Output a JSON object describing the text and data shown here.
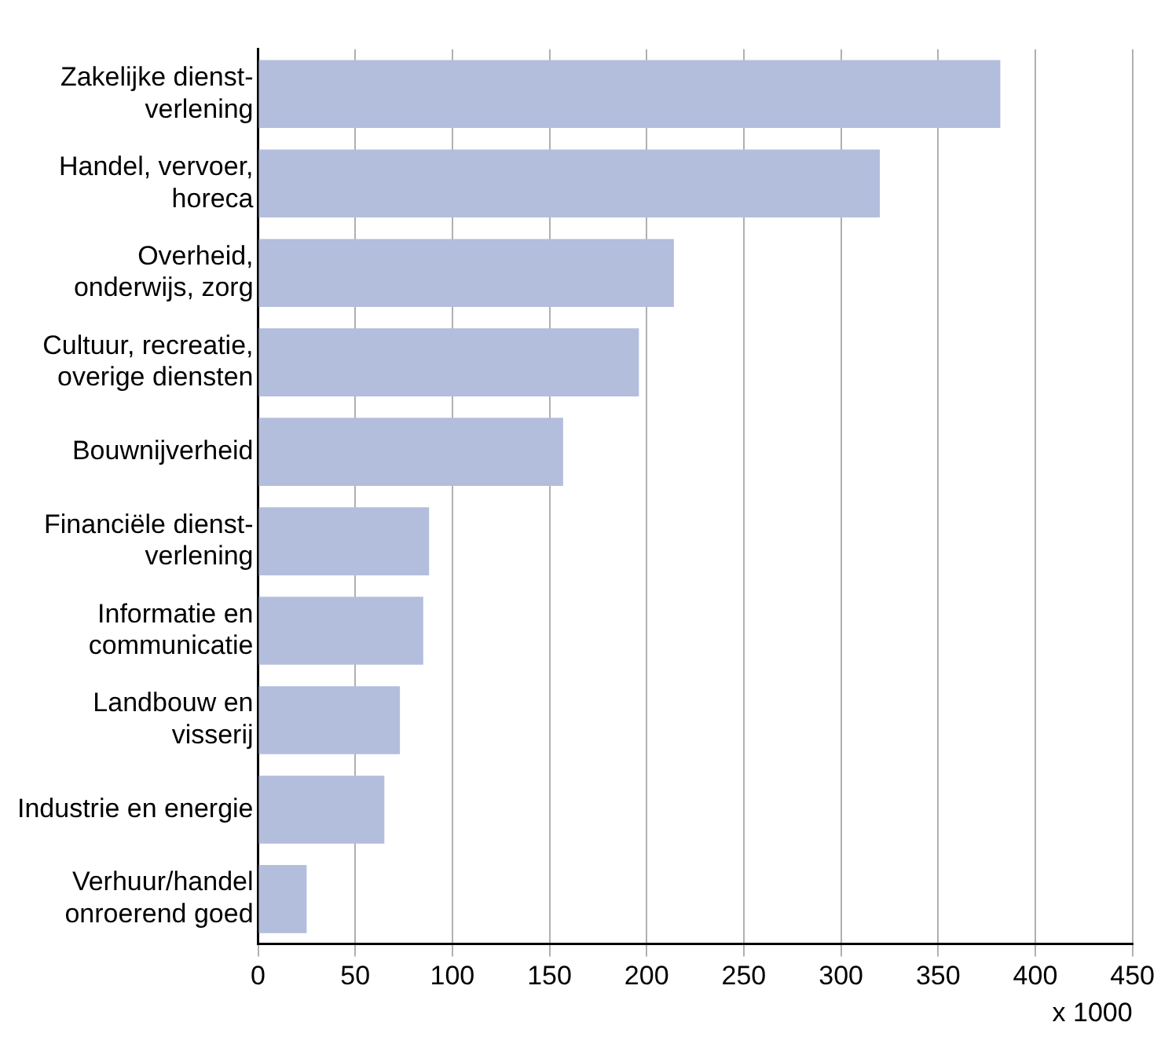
{
  "chart_data": {
    "type": "bar",
    "orientation": "horizontal",
    "categories": [
      "Zakelijke dienst-\nverlening",
      "Handel, vervoer,\nhoreca",
      "Overheid,\nonderwijs, zorg",
      "Cultuur, recreatie,\noverige diensten",
      "Bouwnijverheid",
      "Financiële dienst-\nverlening",
      "Informatie en\ncommunicatie",
      "Landbouw en\nvisserij",
      "Industrie en energie",
      "Verhuur/handel\nonroerend goed"
    ],
    "values": [
      382,
      320,
      214,
      196,
      157,
      88,
      85,
      73,
      65,
      25
    ],
    "color": "#b3bedd",
    "xlim": [
      0,
      450
    ],
    "xticks": [
      0,
      50,
      100,
      150,
      200,
      250,
      300,
      350,
      400,
      450
    ],
    "xlabel": "x 1000",
    "grid": "x",
    "legend": false
  }
}
